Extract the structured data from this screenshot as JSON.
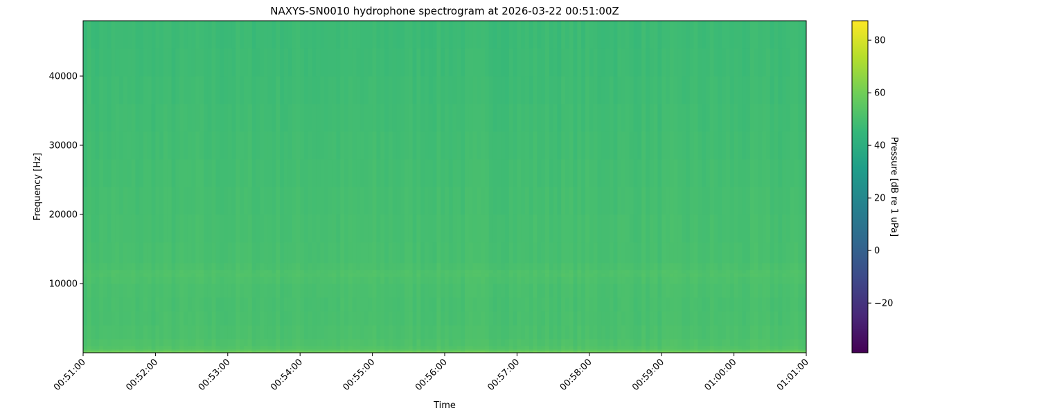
{
  "chart_data": {
    "type": "heatmap",
    "title": "NAXYS-SN0010 hydrophone spectrogram at 2026-03-22 00:51:00Z",
    "xlabel": "Time",
    "ylabel": "Frequency [Hz]",
    "colorbar_label": "Pressure [dB re 1 uPa]",
    "colormap": "viridis",
    "clim": [
      -38.9,
      87.4
    ],
    "xlim": [
      "00:51:00",
      "01:01:00"
    ],
    "ylim": [
      0,
      48000
    ],
    "x_ticks": [
      "00:51:00",
      "00:52:00",
      "00:53:00",
      "00:54:00",
      "00:55:00",
      "00:56:00",
      "00:57:00",
      "00:58:00",
      "00:59:00",
      "01:00:00",
      "01:01:00"
    ],
    "y_ticks": [
      10000,
      20000,
      30000,
      40000
    ],
    "y_tick_labels": [
      "10000",
      "20000",
      "30000",
      "40000"
    ],
    "colorbar_ticks": [
      -20,
      0,
      20,
      40,
      60,
      80
    ],
    "colorbar_tick_labels": [
      "−20",
      "0",
      "20",
      "40",
      "60",
      "80"
    ],
    "frequency_profile": {
      "frequency_hz": [
        0,
        500,
        2000,
        6000,
        10000,
        11500,
        13000,
        20000,
        30000,
        40000,
        48000
      ],
      "level_db": [
        62,
        53,
        51,
        50,
        50.5,
        52,
        50,
        49.5,
        48.5,
        47.5,
        47
      ]
    },
    "grid": false
  }
}
